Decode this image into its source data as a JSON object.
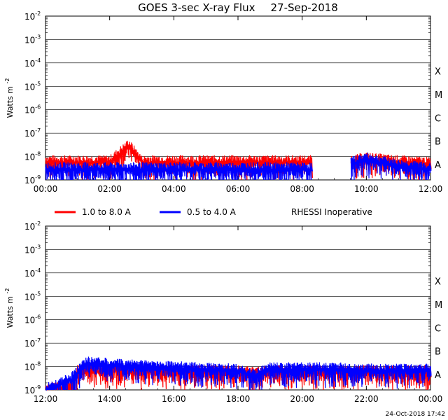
{
  "title": "GOES 3-sec X-ray Flux",
  "date": "27-Sep-2018",
  "ylabel": "Watts m",
  "ylabel_sup": "-2",
  "y_ticks": [
    {
      "base": "10",
      "exp": "-2"
    },
    {
      "base": "10",
      "exp": "-3"
    },
    {
      "base": "10",
      "exp": "-4"
    },
    {
      "base": "10",
      "exp": "-5"
    },
    {
      "base": "10",
      "exp": "-6"
    },
    {
      "base": "10",
      "exp": "-7"
    },
    {
      "base": "10",
      "exp": "-8"
    },
    {
      "base": "10",
      "exp": "-9"
    }
  ],
  "flare_classes": [
    "X",
    "M",
    "C",
    "B",
    "A"
  ],
  "legend": {
    "long": "1.0 to 8.0 A",
    "short": "0.5 to 4.0 A",
    "note": "RHESSI Inoperative"
  },
  "footer": "24-Oct-2018 17:42",
  "colors": {
    "long": "#ff0000",
    "short": "#0000ff",
    "grid": "#000000"
  },
  "chart_data": [
    {
      "type": "line",
      "x_ticks": [
        "00:00",
        "02:00",
        "04:00",
        "06:00",
        "08:00",
        "10:00",
        "12:00"
      ],
      "xlim": [
        0,
        12
      ],
      "ylim": [
        1e-09,
        0.01
      ],
      "y_scale": "log",
      "gaps": [
        [
          8.3,
          9.5
        ]
      ],
      "series": [
        {
          "name": "1.0 to 8.0 A",
          "color": "#ff0000",
          "x": [
            0,
            1,
            2,
            2.6,
            3,
            4,
            5,
            6,
            7,
            8,
            8.3,
            9.5,
            10,
            11,
            12
          ],
          "y": [
            6e-09,
            6e-09,
            6e-09,
            3e-08,
            6e-09,
            6e-09,
            6e-09,
            6e-09,
            6e-09,
            6e-09,
            6e-09,
            6e-09,
            8e-09,
            6e-09,
            5e-09
          ]
        },
        {
          "name": "0.5 to 4.0 A",
          "color": "#0000ff",
          "x": [
            0,
            1,
            2,
            3,
            4,
            5,
            6,
            7,
            8,
            8.3,
            9.5,
            10,
            11,
            12
          ],
          "y": [
            3e-09,
            3e-09,
            3e-09,
            3e-09,
            3e-09,
            3e-09,
            3e-09,
            3e-09,
            3e-09,
            3e-09,
            5e-09,
            8e-09,
            4e-09,
            3e-09
          ]
        }
      ]
    },
    {
      "type": "line",
      "x_ticks": [
        "12:00",
        "14:00",
        "16:00",
        "18:00",
        "20:00",
        "22:00",
        "00:00"
      ],
      "xlim": [
        12,
        24
      ],
      "ylim": [
        1e-09,
        0.01
      ],
      "y_scale": "log",
      "gaps": [],
      "series": [
        {
          "name": "1.0 to 8.0 A",
          "color": "#ff0000",
          "x": [
            12,
            12.8,
            13,
            14,
            15,
            16,
            17,
            18,
            18.5,
            19,
            20,
            21,
            22,
            23,
            24
          ],
          "y": [
            1e-09,
            1.5e-09,
            6e-09,
            7e-09,
            6e-09,
            6e-09,
            6e-09,
            6e-09,
            5e-09,
            6e-09,
            6e-09,
            6e-09,
            6e-09,
            6e-09,
            6e-09
          ]
        },
        {
          "name": "0.5 to 4.0 A",
          "color": "#0000ff",
          "x": [
            12,
            12.8,
            13.3,
            14,
            15,
            16,
            17,
            18,
            18.5,
            19,
            20,
            21,
            22,
            23,
            24
          ],
          "y": [
            1e-09,
            3e-09,
            1.5e-08,
            1.2e-08,
            1e-08,
            9e-09,
            8e-09,
            7e-09,
            4e-09,
            8e-09,
            8e-09,
            8e-09,
            7e-09,
            7e-09,
            7e-09
          ]
        }
      ]
    }
  ]
}
